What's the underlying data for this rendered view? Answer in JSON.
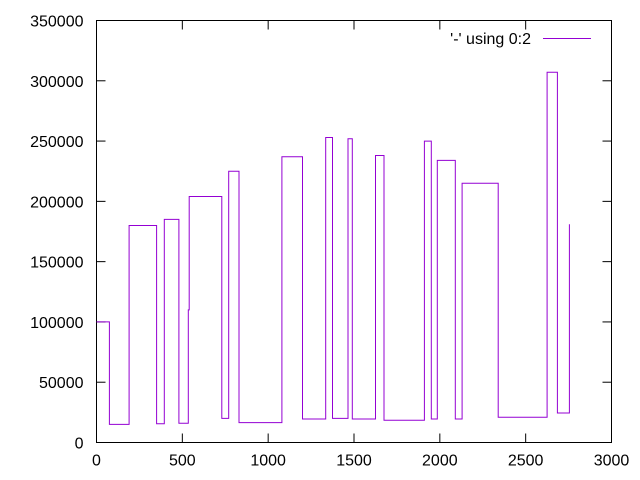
{
  "chart_data": {
    "type": "line",
    "legend": {
      "label": "'-' using 0:2",
      "placement": "top-right"
    },
    "xlim": [
      0,
      3000
    ],
    "ylim": [
      0,
      350000
    ],
    "x_ticks": [
      0,
      500,
      1000,
      1500,
      2000,
      2500,
      3000
    ],
    "x_tick_labels": [
      "0",
      "500",
      "1000",
      "1500",
      "2000",
      "2500",
      "3000"
    ],
    "y_ticks": [
      0,
      50000,
      100000,
      150000,
      200000,
      250000,
      300000,
      350000
    ],
    "y_tick_labels": [
      "0",
      "50000",
      "100000",
      "150000",
      "200000",
      "250000",
      "300000",
      "350000"
    ],
    "grid": false,
    "series": [
      {
        "color": "#9400d3",
        "points": [
          [
            0,
            100000
          ],
          [
            75,
            100000
          ],
          [
            75,
            15000
          ],
          [
            190,
            15000
          ],
          [
            190,
            180000
          ],
          [
            350,
            180000
          ],
          [
            350,
            15500
          ],
          [
            395,
            15500
          ],
          [
            395,
            185000
          ],
          [
            480,
            185000
          ],
          [
            480,
            16000
          ],
          [
            535,
            16000
          ],
          [
            535,
            110000
          ],
          [
            540,
            110000
          ],
          [
            540,
            204000
          ],
          [
            730,
            204000
          ],
          [
            730,
            20000
          ],
          [
            770,
            20000
          ],
          [
            770,
            225000
          ],
          [
            830,
            225000
          ],
          [
            830,
            16500
          ],
          [
            1080,
            16500
          ],
          [
            1080,
            237000
          ],
          [
            1200,
            237000
          ],
          [
            1200,
            19500
          ],
          [
            1335,
            19500
          ],
          [
            1335,
            253000
          ],
          [
            1375,
            253000
          ],
          [
            1375,
            20000
          ],
          [
            1465,
            20000
          ],
          [
            1465,
            252000
          ],
          [
            1490,
            252000
          ],
          [
            1490,
            19500
          ],
          [
            1625,
            19500
          ],
          [
            1625,
            238000
          ],
          [
            1675,
            238000
          ],
          [
            1675,
            18500
          ],
          [
            1910,
            18500
          ],
          [
            1910,
            250000
          ],
          [
            1950,
            250000
          ],
          [
            1950,
            19500
          ],
          [
            1985,
            19500
          ],
          [
            1985,
            234000
          ],
          [
            2090,
            234000
          ],
          [
            2090,
            19500
          ],
          [
            2130,
            19500
          ],
          [
            2130,
            215000
          ],
          [
            2340,
            215000
          ],
          [
            2340,
            21000
          ],
          [
            2625,
            21000
          ],
          [
            2625,
            307000
          ],
          [
            2685,
            307000
          ],
          [
            2685,
            24500
          ],
          [
            2755,
            24500
          ],
          [
            2755,
            181000
          ]
        ]
      }
    ]
  }
}
